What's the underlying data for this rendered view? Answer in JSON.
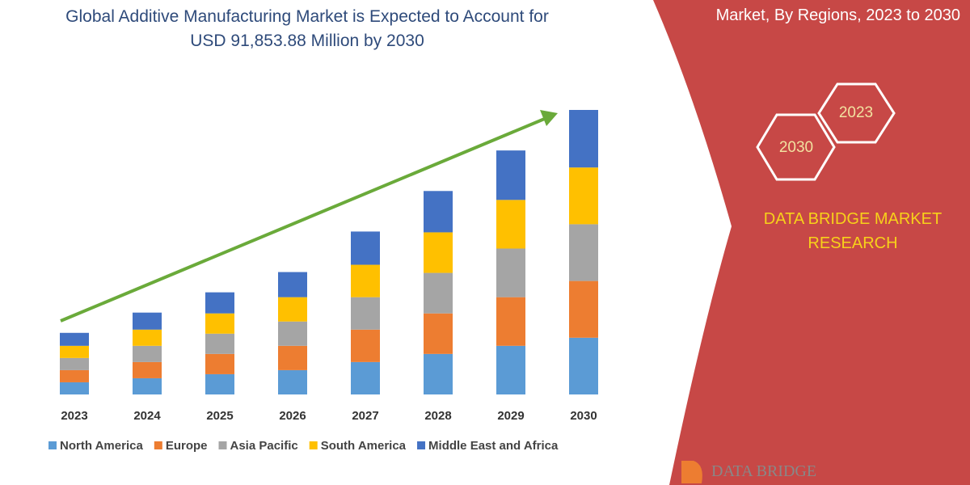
{
  "chart_data": {
    "type": "bar",
    "stacked": true,
    "title": "Global Additive Manufacturing Market is Expected to Account for USD 91,853.88 Million by 2030",
    "categories": [
      "2023",
      "2024",
      "2025",
      "2026",
      "2027",
      "2028",
      "2029",
      "2030"
    ],
    "series": [
      {
        "name": "North America",
        "color": "#5b9bd5",
        "values": [
          15,
          20,
          25,
          30,
          40,
          50,
          60,
          70
        ]
      },
      {
        "name": "Europe",
        "color": "#ed7d31",
        "values": [
          15,
          20,
          25,
          30,
          40,
          50,
          60,
          70
        ]
      },
      {
        "name": "Asia Pacific",
        "color": "#a5a5a5",
        "values": [
          15,
          20,
          25,
          30,
          40,
          50,
          60,
          70
        ]
      },
      {
        "name": "South America",
        "color": "#ffc000",
        "values": [
          15,
          20,
          25,
          30,
          40,
          50,
          60,
          70
        ]
      },
      {
        "name": "Middle East and Africa",
        "color": "#4472c4",
        "values": [
          16,
          21,
          26,
          31,
          41,
          51,
          61,
          71
        ]
      }
    ]
  },
  "side_panel": {
    "subtitle": "Market, By Regions, 2023 to 2030",
    "hex_top": "2023",
    "hex_bottom": "2030",
    "brand": "DATA BRIDGE MARKET RESEARCH",
    "logo": "DATA BRIDGE"
  }
}
